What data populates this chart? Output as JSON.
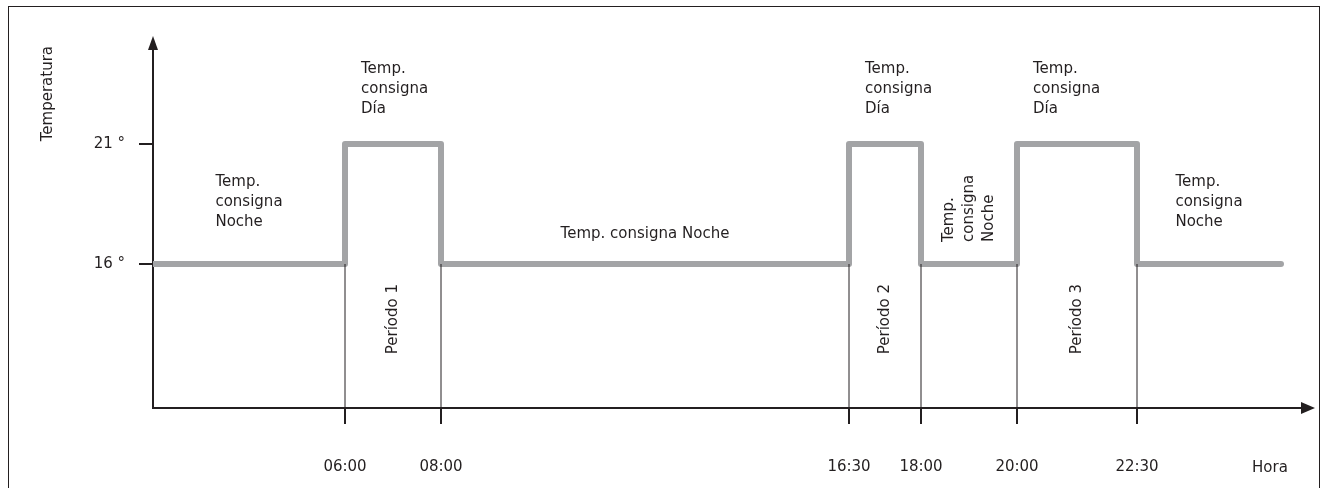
{
  "chart_data": {
    "type": "step",
    "xlabel": "Hora",
    "ylabel": "Temperatura",
    "x": [
      2,
      6,
      8,
      16.5,
      18,
      20,
      22.5,
      25.5
    ],
    "values": [
      16,
      21,
      16,
      21,
      16,
      21,
      16,
      16
    ],
    "color": "#a3a4a6",
    "xlim": [
      2,
      26
    ],
    "ylim": [
      10,
      25
    ],
    "xticks": [
      {
        "value": 6,
        "label": "06:00"
      },
      {
        "value": 8,
        "label": "08:00"
      },
      {
        "value": 16.5,
        "label": "16:30"
      },
      {
        "value": 18,
        "label": "18:00"
      },
      {
        "value": 20,
        "label": "20:00"
      },
      {
        "value": 22.5,
        "label": "22:30"
      }
    ],
    "yticks": [
      {
        "value": 16,
        "label": "16 °"
      },
      {
        "value": 21,
        "label": "21 °"
      }
    ],
    "ref_lines": [
      {
        "axis": "x",
        "value": 6,
        "color": "#231f20"
      },
      {
        "axis": "x",
        "value": 8,
        "color": "#231f20"
      },
      {
        "axis": "x",
        "value": 16.5,
        "color": "#231f20"
      },
      {
        "axis": "x",
        "value": 18,
        "color": "#231f20"
      },
      {
        "axis": "x",
        "value": 20,
        "color": "#231f20"
      },
      {
        "axis": "x",
        "value": 22.5,
        "color": "#231f20"
      }
    ],
    "annotations": [
      "Temp.\nconsigna\nNoche",
      "Temp.\nconsigna\nDía",
      "Período 1",
      "Temp. consigna Noche",
      "Temp.\nconsigna\nDía",
      "Período 2",
      "Temp.\nconsigna\nNoche",
      "Temp.\nconsigna\nDía",
      "Período 3",
      "Temp.\nconsigna\nNoche"
    ]
  }
}
